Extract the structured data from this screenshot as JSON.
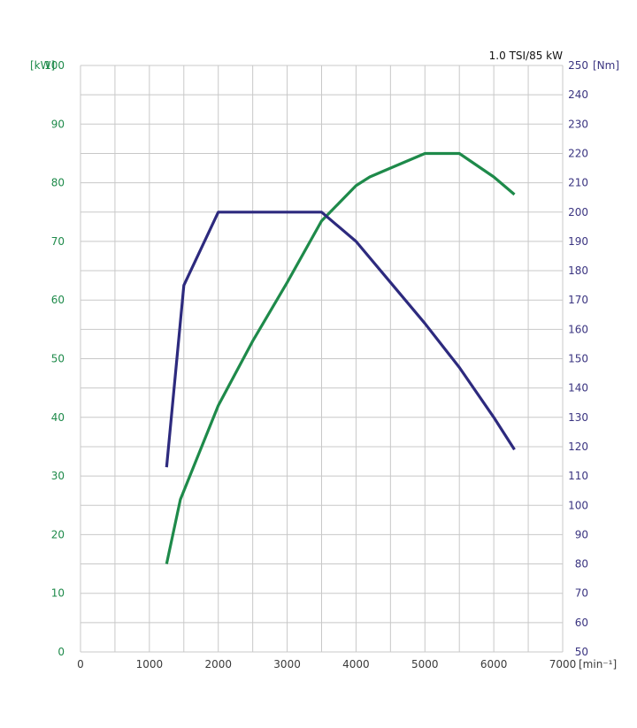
{
  "chart_data": {
    "type": "line",
    "title": "1.0 TSI/85 kW",
    "xlabel": "[min⁻¹]",
    "ylabel_left": "[kW]",
    "ylabel_right": "[Nm]",
    "xlim": [
      0,
      7000
    ],
    "ylim_left": [
      0,
      100
    ],
    "ylim_right": [
      50,
      250
    ],
    "x_ticks": [
      "0",
      "1000",
      "2000",
      "3000",
      "4000",
      "5000",
      "6000",
      "7000"
    ],
    "y_left_ticks": [
      "0",
      "10",
      "20",
      "30",
      "40",
      "50",
      "60",
      "70",
      "80",
      "90",
      "100"
    ],
    "y_right_ticks": [
      "50",
      "60",
      "70",
      "80",
      "90",
      "100",
      "110",
      "120",
      "130",
      "140",
      "150",
      "160",
      "170",
      "180",
      "190",
      "200",
      "210",
      "220",
      "230",
      "240",
      "250"
    ],
    "grid": true,
    "series": [
      {
        "axis": "left",
        "color": "#1e8a4a",
        "x": [
          1250,
          1450,
          2000,
          2500,
          3000,
          3500,
          4000,
          4200,
          4500,
          5000,
          5500,
          6000,
          6300
        ],
        "y": [
          15,
          26,
          42,
          53,
          63,
          73.5,
          79.5,
          81,
          82.5,
          85,
          85,
          81,
          78
        ]
      },
      {
        "axis": "right",
        "color": "#2d2a7e",
        "x": [
          1250,
          1500,
          2000,
          2500,
          3000,
          3500,
          4000,
          4500,
          5000,
          5500,
          6000,
          6300
        ],
        "y": [
          113,
          175,
          200,
          200,
          200,
          200,
          190,
          176,
          162,
          147,
          130,
          119
        ]
      }
    ],
    "colors": {
      "left_axis": "#1e8a4a",
      "right_axis": "#3a3480",
      "grid": "#c8c8c8"
    }
  }
}
